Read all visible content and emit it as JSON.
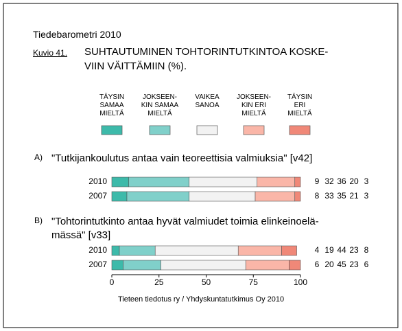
{
  "chart_data": {
    "type": "bar",
    "orientation": "horizontal",
    "stacked": true,
    "report": "Tiedebarometri 2010",
    "figure_label": "Kuvio 41.",
    "title": "SUHTAUTUMINEN TOHTORINTUTKINTOA KOSKE-\nVIIN VÄITTÄMIIN (%).",
    "series": [
      {
        "name": "TÄYSIN\nSAMAA\nMIELTÄ",
        "color": "#3dbaaa"
      },
      {
        "name": "JOKSEEN-\nKIN SAMAA\nMIELTÄ",
        "color": "#80d0ca"
      },
      {
        "name": "VAIKEA\nSANOA",
        "color": "#f2f2f2"
      },
      {
        "name": "JOKSEEN-\nKIN ERI\nMIELTÄ",
        "color": "#fab6a8"
      },
      {
        "name": "TÄYSIN\nERI\nMIELTÄ",
        "color": "#f08878"
      }
    ],
    "panels": [
      {
        "label": "A)",
        "title": "\"Tutkijankoulutus antaa vain teoreettisia valmiuksia\" [v42]",
        "categories": [
          "2010",
          "2007"
        ],
        "values": [
          [
            9,
            32,
            36,
            20,
            3
          ],
          [
            8,
            33,
            35,
            21,
            3
          ]
        ]
      },
      {
        "label": "B)",
        "title": "\"Tohtorintutkinto antaa hyvät valmiudet toimia elinkeinoelä-\nmässä\" [v33]",
        "categories": [
          "2010",
          "2007"
        ],
        "values": [
          [
            4,
            19,
            44,
            23,
            8
          ],
          [
            6,
            20,
            45,
            23,
            6
          ]
        ]
      }
    ],
    "xlim": [
      0,
      100
    ],
    "xticks": [
      0,
      25,
      50,
      75,
      100
    ],
    "source": "Tieteen tiedotus ry / Yhdyskuntatutkimus Oy 2010"
  }
}
